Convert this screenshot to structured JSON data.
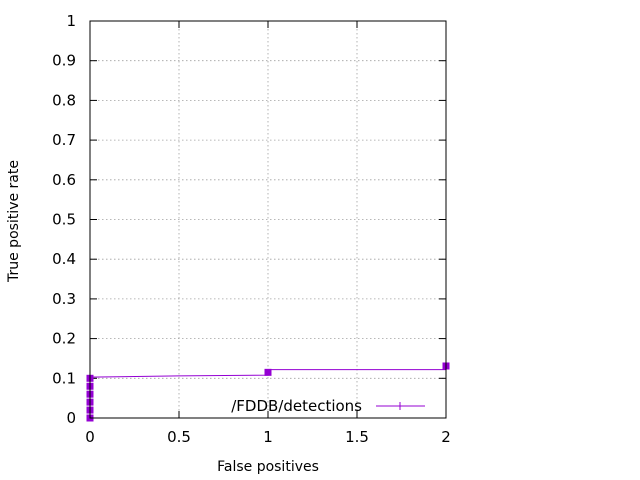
{
  "chart_data": {
    "type": "line",
    "xlabel": "False positives",
    "ylabel": "True positive rate",
    "xlim": [
      0,
      2
    ],
    "ylim": [
      0,
      1
    ],
    "x_ticks": [
      {
        "value": 0,
        "label": "0"
      },
      {
        "value": 0.5,
        "label": "0.5"
      },
      {
        "value": 1,
        "label": "1"
      },
      {
        "value": 1.5,
        "label": "1.5"
      },
      {
        "value": 2,
        "label": "2"
      }
    ],
    "y_ticks": [
      {
        "value": 0,
        "label": "0"
      },
      {
        "value": 0.1,
        "label": "0.1"
      },
      {
        "value": 0.2,
        "label": "0.2"
      },
      {
        "value": 0.3,
        "label": "0.3"
      },
      {
        "value": 0.4,
        "label": "0.4"
      },
      {
        "value": 0.5,
        "label": "0.5"
      },
      {
        "value": 0.6,
        "label": "0.6"
      },
      {
        "value": 0.7,
        "label": "0.7"
      },
      {
        "value": 0.8,
        "label": "0.8"
      },
      {
        "value": 0.9,
        "label": "0.9"
      },
      {
        "value": 1,
        "label": "1"
      }
    ],
    "grid": true,
    "legend_position": "bottom-right",
    "series": [
      {
        "name": "/FDDB/detections",
        "color": "#9400d3",
        "line_points": [
          {
            "x": 0,
            "y": 0
          },
          {
            "x": 0,
            "y": 0.103
          },
          {
            "x": 0.5,
            "y": 0.106
          },
          {
            "x": 1,
            "y": 0.108
          },
          {
            "x": 1,
            "y": 0.122
          },
          {
            "x": 2,
            "y": 0.122
          },
          {
            "x": 2,
            "y": 0.131
          }
        ],
        "markers": [
          {
            "x": 0,
            "y": 0.0
          },
          {
            "x": 0,
            "y": 0.02
          },
          {
            "x": 0,
            "y": 0.04
          },
          {
            "x": 0,
            "y": 0.06
          },
          {
            "x": 0,
            "y": 0.08
          },
          {
            "x": 0,
            "y": 0.1
          },
          {
            "x": 1,
            "y": 0.115
          },
          {
            "x": 2,
            "y": 0.131
          }
        ]
      }
    ]
  }
}
